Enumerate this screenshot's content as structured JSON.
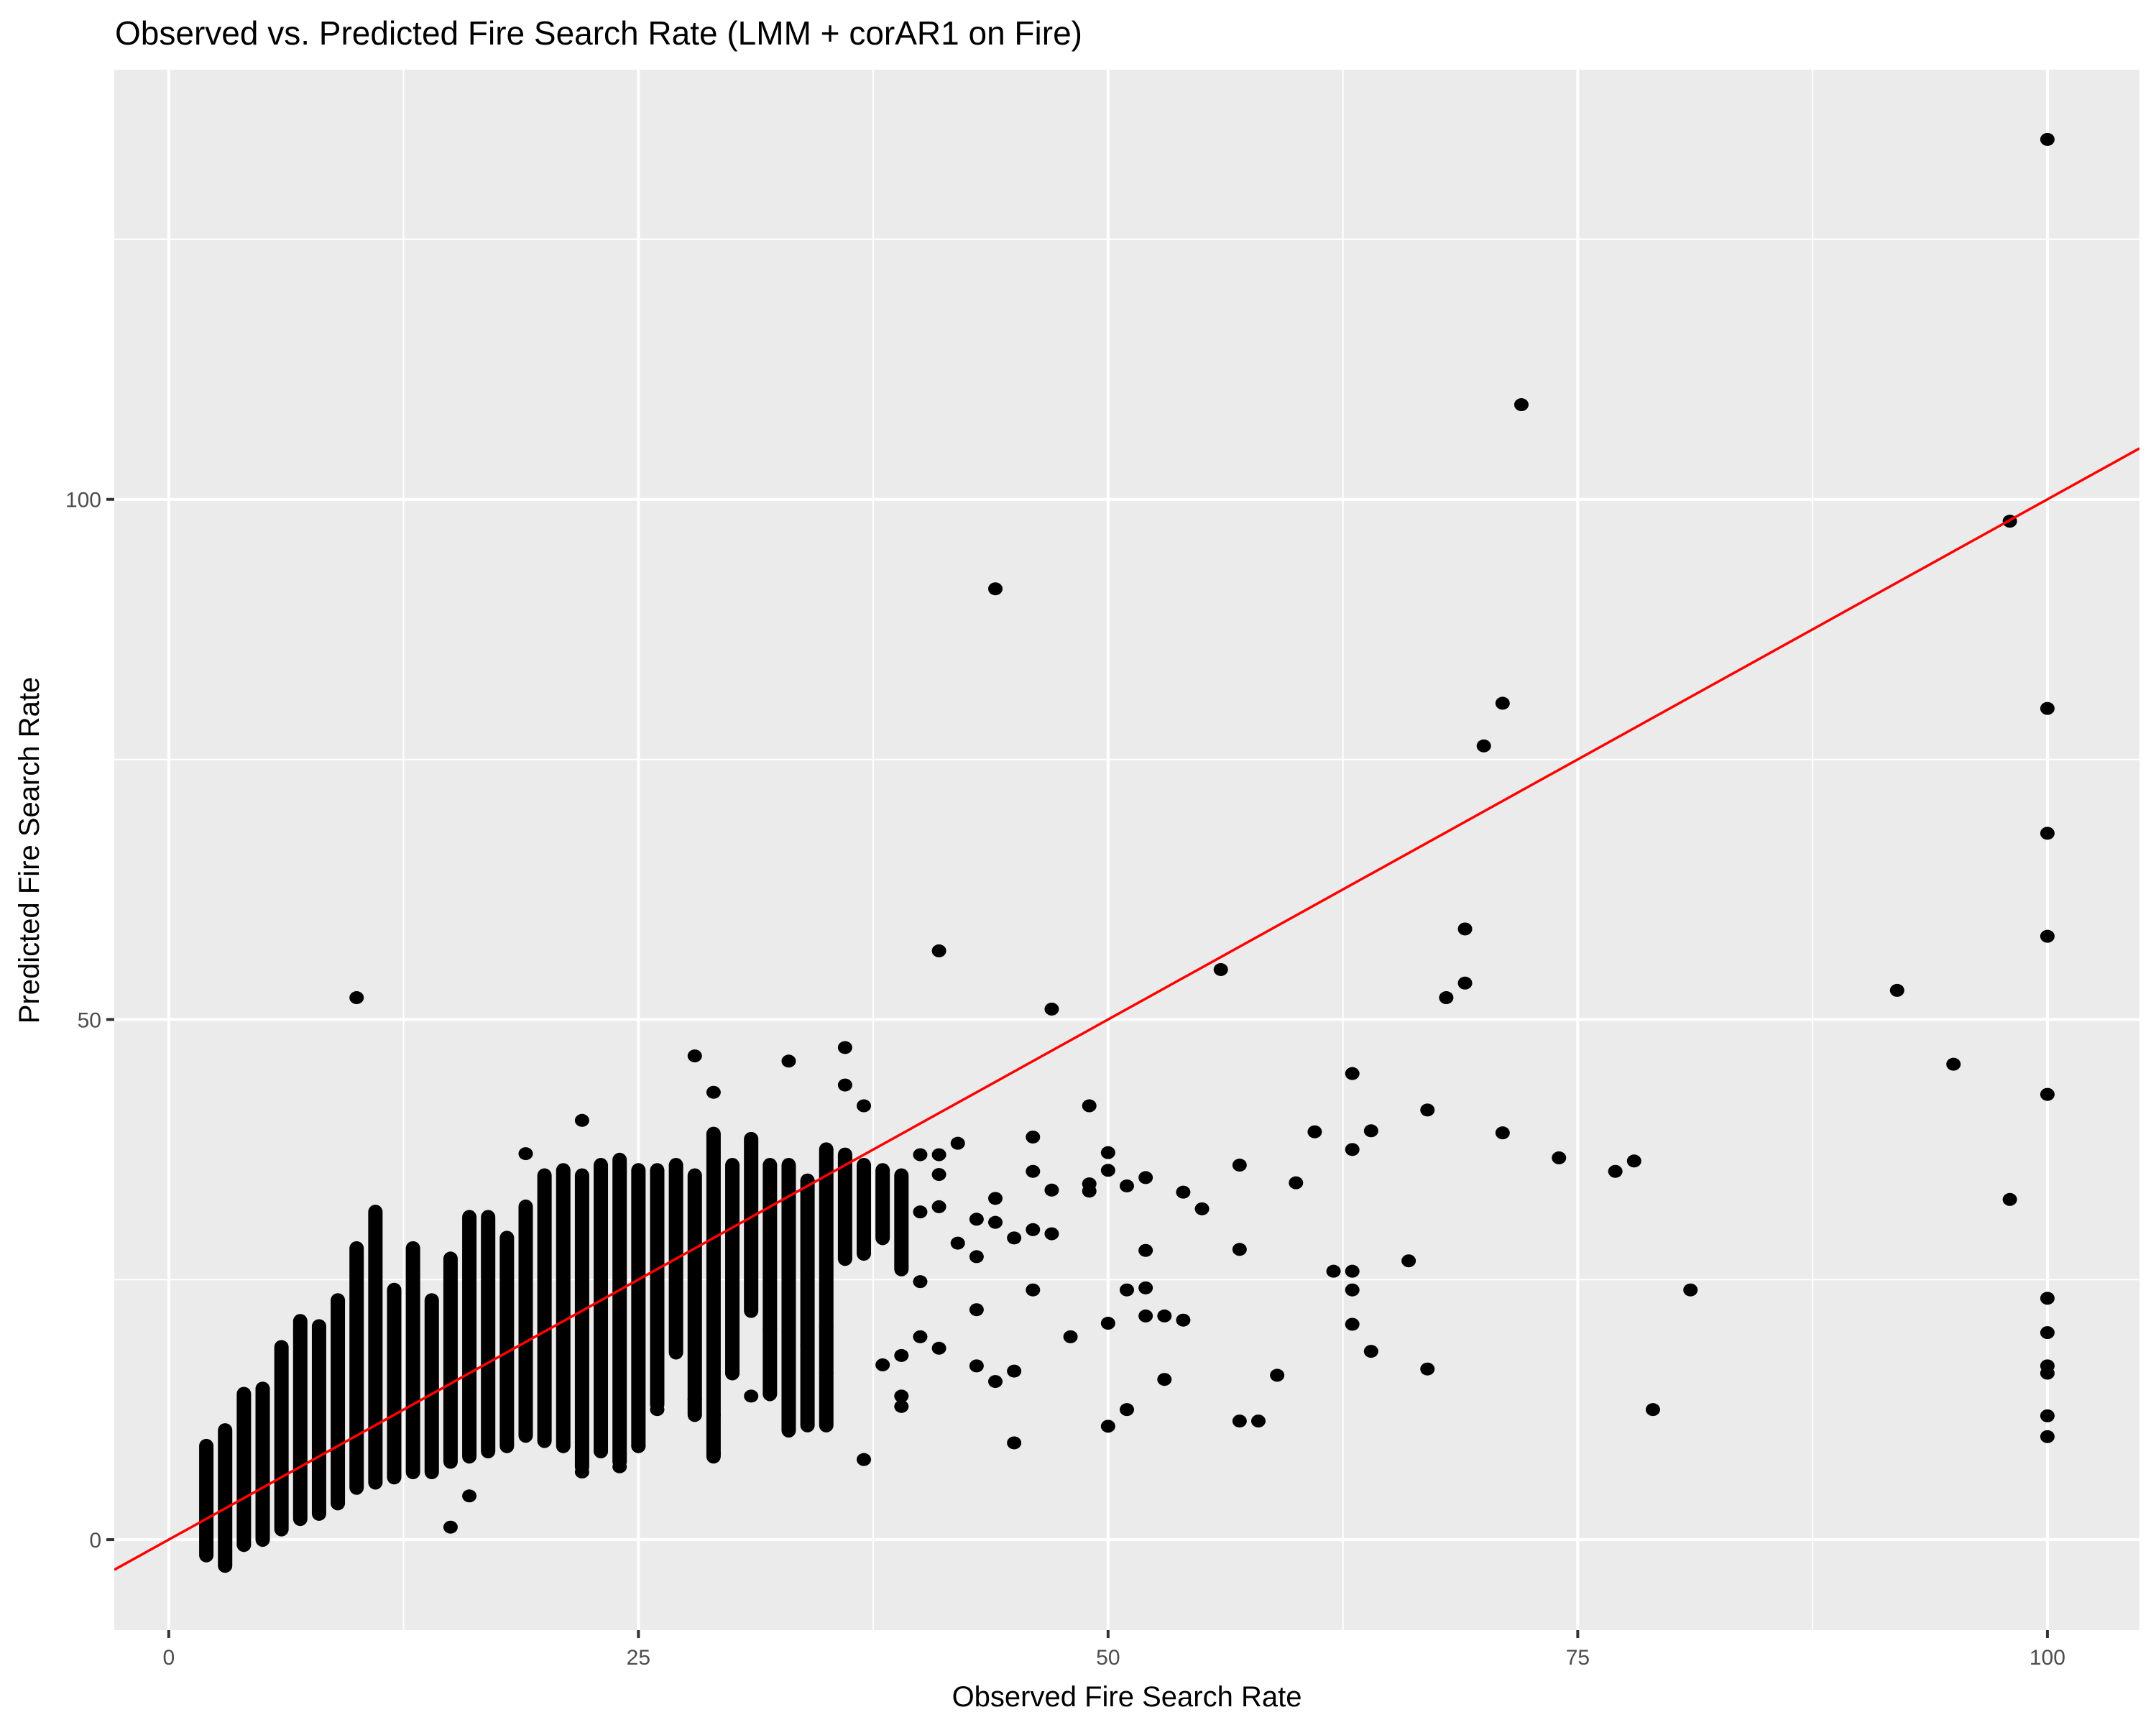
{
  "chart_data": {
    "type": "scatter",
    "title": "Observed vs. Predicted Fire Search Rate (LMM + corAR1 on Fire)",
    "xlabel": "Observed Fire Search Rate",
    "ylabel": "Predicted Fire Search Rate",
    "xlim": [
      -2.9,
      104.9
    ],
    "ylim": [
      -8.7,
      141.3
    ],
    "x_ticks": [
      0,
      25,
      50,
      75,
      100
    ],
    "y_ticks": [
      0,
      50,
      100
    ],
    "x_tick_labels": [
      "0",
      "25",
      "50",
      "75",
      "100"
    ],
    "y_tick_labels": [
      "0",
      "50",
      "100"
    ],
    "grid": true,
    "legend": "none",
    "reference_line": {
      "type": "identity",
      "slope": 1,
      "intercept": 0,
      "color": "#ff0000"
    },
    "point_color": "#000000",
    "panel_background": "#ebebeb",
    "grid_color": "#ffffff",
    "dense_columns_note": "Dense vertical stacks of points at integer observed values; given as [x, y_min, y_max]",
    "dense_columns": [
      [
        2,
        -1.5,
        9
      ],
      [
        3,
        -2.5,
        10.5
      ],
      [
        4,
        -0.5,
        14
      ],
      [
        5,
        0,
        14.5
      ],
      [
        6,
        1,
        18.5
      ],
      [
        7,
        2,
        21
      ],
      [
        8,
        2.5,
        20.5
      ],
      [
        9,
        3.5,
        23
      ],
      [
        10,
        5,
        28
      ],
      [
        11,
        5.5,
        31.5
      ],
      [
        12,
        6,
        24
      ],
      [
        13,
        6.5,
        28
      ],
      [
        14,
        6.5,
        23
      ],
      [
        15,
        7.5,
        27
      ],
      [
        16,
        8,
        31
      ],
      [
        17,
        8.5,
        31
      ],
      [
        18,
        9,
        29
      ],
      [
        19,
        10,
        32
      ],
      [
        20,
        9.5,
        35
      ],
      [
        21,
        9,
        35.5
      ],
      [
        22,
        7,
        35
      ],
      [
        23,
        8.5,
        36
      ],
      [
        24,
        7.5,
        36.5
      ],
      [
        25,
        9,
        35.5
      ],
      [
        26,
        13,
        35.5
      ],
      [
        27,
        18,
        36
      ],
      [
        28,
        12,
        35
      ],
      [
        29,
        8,
        39
      ],
      [
        30,
        16,
        36
      ],
      [
        31,
        22,
        38.5
      ],
      [
        32,
        14,
        36
      ],
      [
        33,
        10.5,
        36
      ],
      [
        34,
        11,
        34.5
      ],
      [
        35,
        11,
        37.5
      ],
      [
        36,
        27,
        37
      ],
      [
        37,
        27.5,
        36
      ],
      [
        38,
        29,
        35.5
      ],
      [
        39,
        26,
        35
      ]
    ],
    "points": [
      {
        "x": 100,
        "y": 134.6
      },
      {
        "x": 72,
        "y": 109.1
      },
      {
        "x": 44,
        "y": 91.4
      },
      {
        "x": 98,
        "y": 97.9
      },
      {
        "x": 71,
        "y": 80.4
      },
      {
        "x": 70,
        "y": 76.3
      },
      {
        "x": 100,
        "y": 79.9
      },
      {
        "x": 100,
        "y": 67.9
      },
      {
        "x": 69,
        "y": 58.7
      },
      {
        "x": 100,
        "y": 58.0
      },
      {
        "x": 41,
        "y": 56.6
      },
      {
        "x": 10,
        "y": 52.1
      },
      {
        "x": 56,
        "y": 54.8
      },
      {
        "x": 69,
        "y": 53.5
      },
      {
        "x": 68,
        "y": 52.1
      },
      {
        "x": 92,
        "y": 52.8
      },
      {
        "x": 47,
        "y": 51.0
      },
      {
        "x": 95,
        "y": 45.7
      },
      {
        "x": 100,
        "y": 42.8
      },
      {
        "x": 98,
        "y": 32.7
      },
      {
        "x": 100,
        "y": 23.2
      },
      {
        "x": 100,
        "y": 19.9
      },
      {
        "x": 100,
        "y": 16.7
      },
      {
        "x": 100,
        "y": 16.0
      },
      {
        "x": 100,
        "y": 11.9
      },
      {
        "x": 100,
        "y": 9.9
      },
      {
        "x": 81,
        "y": 24.0
      },
      {
        "x": 79,
        "y": 12.5
      },
      {
        "x": 78,
        "y": 36.4
      },
      {
        "x": 77,
        "y": 35.4
      },
      {
        "x": 74,
        "y": 36.7
      },
      {
        "x": 71,
        "y": 39.1
      },
      {
        "x": 67,
        "y": 41.3
      },
      {
        "x": 67,
        "y": 16.4
      },
      {
        "x": 64,
        "y": 39.3
      },
      {
        "x": 63,
        "y": 44.8
      },
      {
        "x": 63,
        "y": 37.5
      },
      {
        "x": 63,
        "y": 25.8
      },
      {
        "x": 63,
        "y": 24.0
      },
      {
        "x": 63,
        "y": 20.7
      },
      {
        "x": 62,
        "y": 25.8
      },
      {
        "x": 64,
        "y": 18.1
      },
      {
        "x": 66,
        "y": 26.8
      },
      {
        "x": 61,
        "y": 39.2
      },
      {
        "x": 60,
        "y": 34.3
      },
      {
        "x": 59,
        "y": 15.8
      },
      {
        "x": 58,
        "y": 11.4
      },
      {
        "x": 57,
        "y": 11.4
      },
      {
        "x": 57,
        "y": 36.0
      },
      {
        "x": 57,
        "y": 27.9
      },
      {
        "x": 55,
        "y": 31.8
      },
      {
        "x": 54,
        "y": 33.4
      },
      {
        "x": 54,
        "y": 21.1
      },
      {
        "x": 53,
        "y": 21.5
      },
      {
        "x": 53,
        "y": 15.4
      },
      {
        "x": 52,
        "y": 21.5
      },
      {
        "x": 52,
        "y": 24.2
      },
      {
        "x": 52,
        "y": 27.8
      },
      {
        "x": 52,
        "y": 34.8
      },
      {
        "x": 51,
        "y": 34.0
      },
      {
        "x": 51,
        "y": 24.0
      },
      {
        "x": 51,
        "y": 12.5
      },
      {
        "x": 50,
        "y": 37.2
      },
      {
        "x": 50,
        "y": 35.5
      },
      {
        "x": 50,
        "y": 20.8
      },
      {
        "x": 50,
        "y": 10.9
      },
      {
        "x": 49,
        "y": 41.7
      },
      {
        "x": 49,
        "y": 34.2
      },
      {
        "x": 49,
        "y": 33.5
      },
      {
        "x": 48,
        "y": 19.5
      },
      {
        "x": 47,
        "y": 33.6
      },
      {
        "x": 47,
        "y": 29.4
      },
      {
        "x": 46,
        "y": 38.7
      },
      {
        "x": 46,
        "y": 35.4
      },
      {
        "x": 46,
        "y": 29.8
      },
      {
        "x": 46,
        "y": 24.0
      },
      {
        "x": 45,
        "y": 16.2
      },
      {
        "x": 45,
        "y": 9.3
      },
      {
        "x": 45,
        "y": 29.0
      },
      {
        "x": 44,
        "y": 32.8
      },
      {
        "x": 44,
        "y": 30.5
      },
      {
        "x": 44,
        "y": 15.2
      },
      {
        "x": 43,
        "y": 16.7
      },
      {
        "x": 43,
        "y": 22.1
      },
      {
        "x": 43,
        "y": 27.2
      },
      {
        "x": 43,
        "y": 30.8
      },
      {
        "x": 42,
        "y": 38.1
      },
      {
        "x": 42,
        "y": 28.5
      },
      {
        "x": 41,
        "y": 35.1
      },
      {
        "x": 41,
        "y": 37.0
      },
      {
        "x": 41,
        "y": 32.0
      },
      {
        "x": 41,
        "y": 18.4
      },
      {
        "x": 40,
        "y": 24.8
      },
      {
        "x": 40,
        "y": 19.5
      },
      {
        "x": 40,
        "y": 31.5
      },
      {
        "x": 40,
        "y": 37.0
      },
      {
        "x": 39,
        "y": 13.8
      },
      {
        "x": 39,
        "y": 12.8
      },
      {
        "x": 39,
        "y": 17.7
      },
      {
        "x": 38,
        "y": 16.8
      },
      {
        "x": 37,
        "y": 7.7
      },
      {
        "x": 37,
        "y": 41.7
      },
      {
        "x": 36,
        "y": 47.3
      },
      {
        "x": 36,
        "y": 43.7
      },
      {
        "x": 33,
        "y": 46.0
      },
      {
        "x": 28,
        "y": 46.5
      },
      {
        "x": 29,
        "y": 43.0
      },
      {
        "x": 22,
        "y": 40.3
      },
      {
        "x": 19,
        "y": 37.1
      },
      {
        "x": 15,
        "y": 1.2
      },
      {
        "x": 16,
        "y": 4.2
      },
      {
        "x": 35,
        "y": 16.0
      },
      {
        "x": 35,
        "y": 20.5
      },
      {
        "x": 34,
        "y": 18.7
      },
      {
        "x": 33,
        "y": 19.8
      },
      {
        "x": 32,
        "y": 20.2
      },
      {
        "x": 29,
        "y": 12.0
      },
      {
        "x": 29,
        "y": 8.3
      },
      {
        "x": 28,
        "y": 13.5
      },
      {
        "x": 26,
        "y": 12.5
      },
      {
        "x": 25,
        "y": 9.0
      },
      {
        "x": 24,
        "y": 7.0
      },
      {
        "x": 23,
        "y": 8.5
      },
      {
        "x": 22,
        "y": 6.5
      },
      {
        "x": 30,
        "y": 16.0
      },
      {
        "x": 31,
        "y": 13.8
      }
    ]
  },
  "page": {
    "title": "Observed vs. Predicted Fire Search Rate (LMM + corAR1 on Fire)",
    "x_axis_title": "Observed Fire Search Rate",
    "y_axis_title": "Predicted Fire Search Rate"
  }
}
